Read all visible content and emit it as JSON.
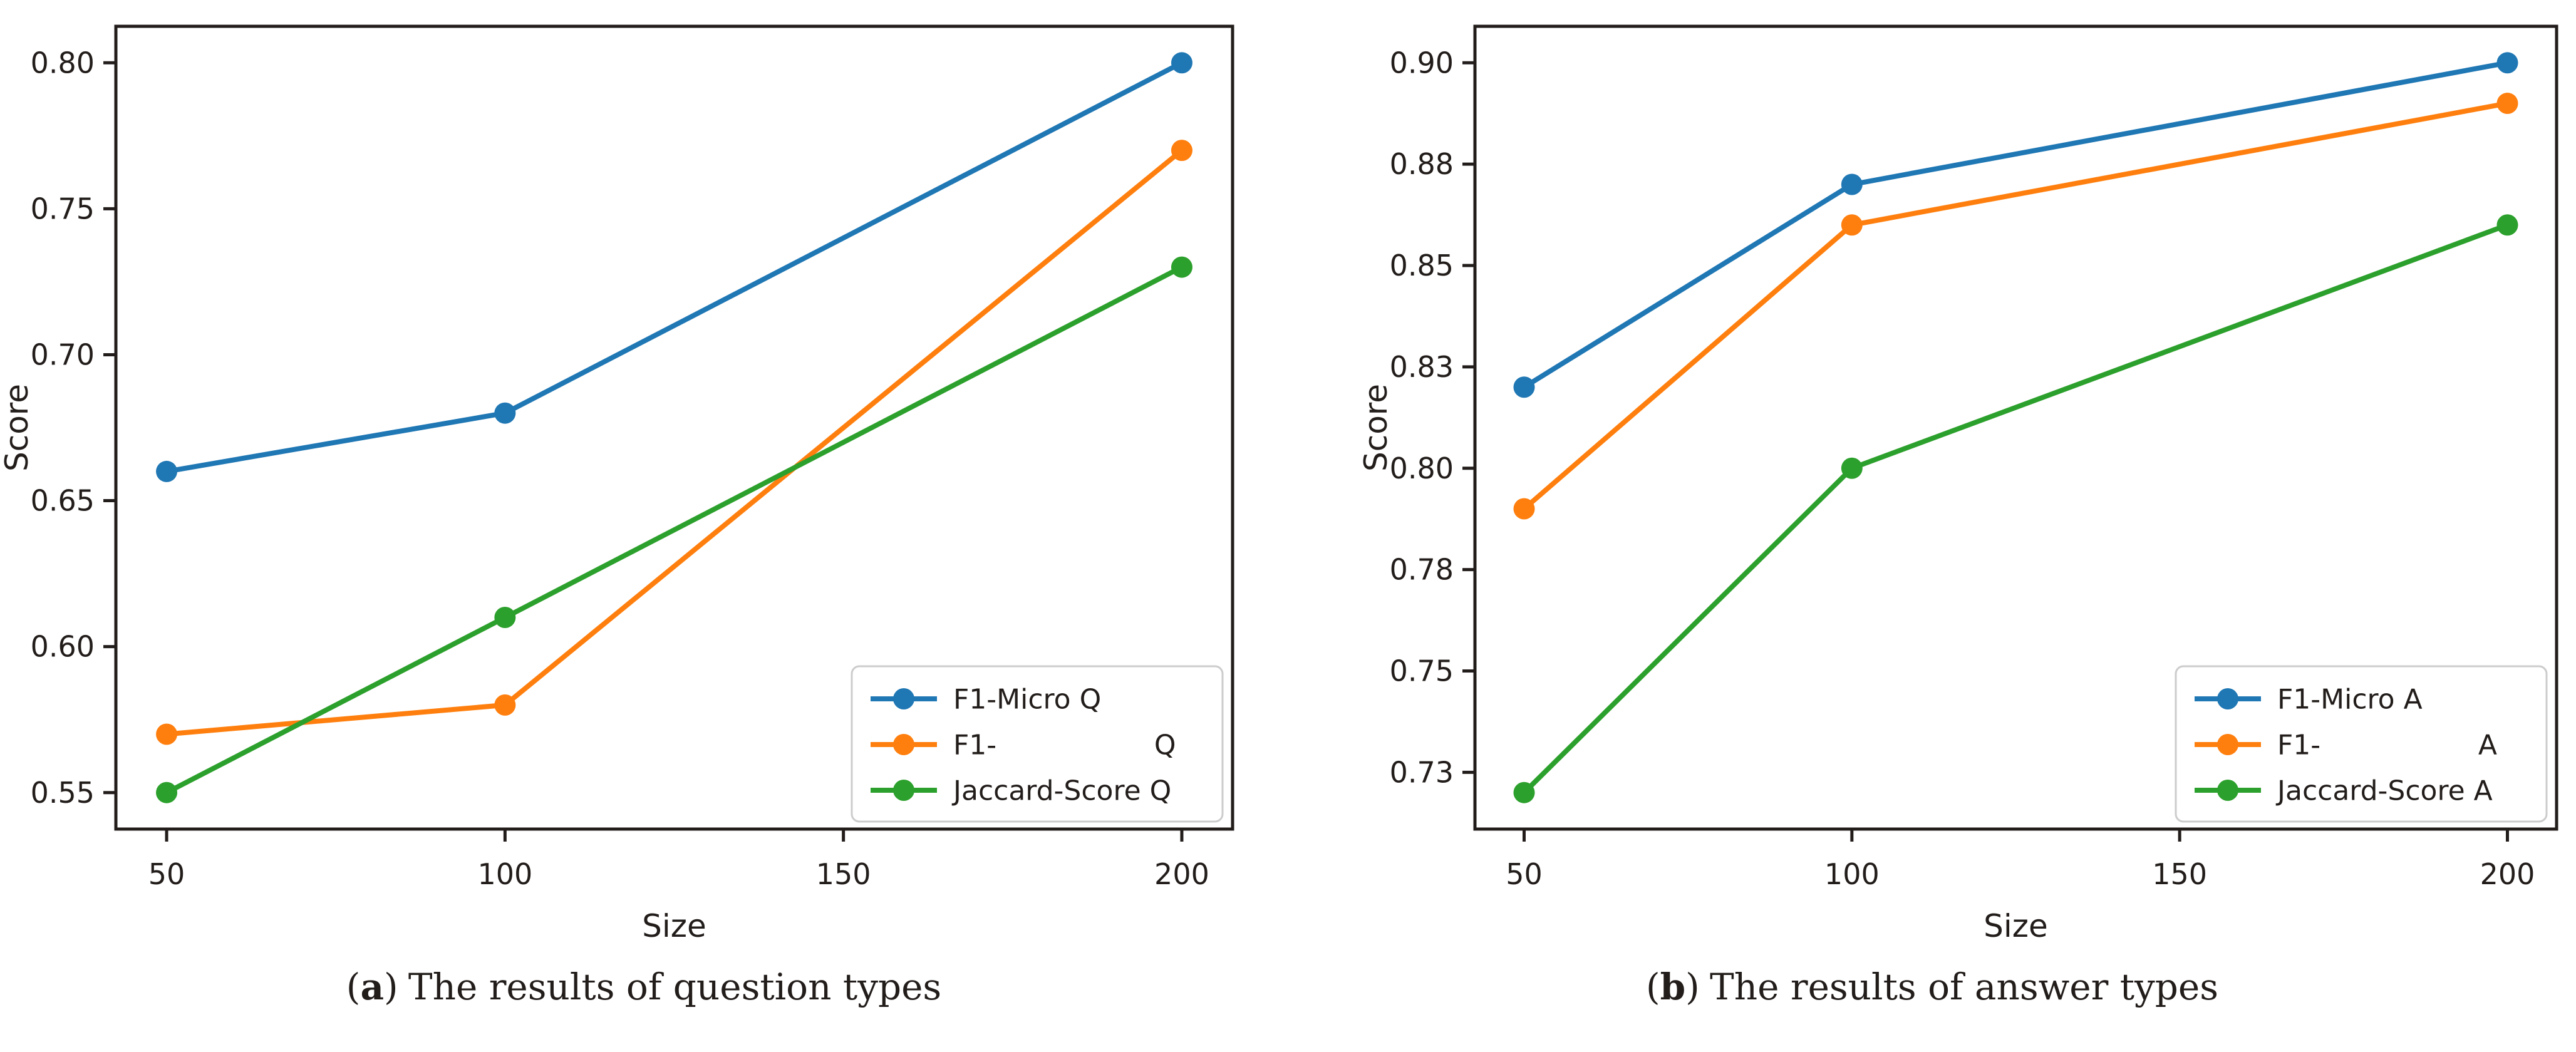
{
  "page": {
    "background": "#ffffff",
    "text_color": "#221d1b",
    "axis_color": "#221d1b",
    "legend_border_color": "#cccccc"
  },
  "captions": [
    {
      "open": "(",
      "letter": "a",
      "close": ")",
      "text": "The results of question types"
    },
    {
      "open": "(",
      "letter": "b",
      "close": ")",
      "text": "The results of answer types"
    }
  ],
  "chart_data": [
    {
      "id": "a",
      "type": "line",
      "title": "",
      "xlabel": "Size",
      "ylabel": "Score",
      "x": [
        50,
        100,
        200
      ],
      "xticks": [
        50,
        100,
        150,
        200
      ],
      "xtick_labels": [
        "50",
        "100",
        "150",
        "200"
      ],
      "ytick_values": [
        0.55,
        0.6,
        0.65,
        0.7,
        0.75,
        0.8
      ],
      "ytick_labels": [
        "0.55",
        "0.60",
        "0.65",
        "0.70",
        "0.75",
        "0.80"
      ],
      "xlim": [
        42.5,
        207.5
      ],
      "ylim": [
        0.5375,
        0.8125
      ],
      "grid": false,
      "legend_position": "lower right",
      "series": [
        {
          "name": "F1-Micro Q",
          "values": [
            0.66,
            0.68,
            0.8
          ],
          "color": "#1f77b4"
        },
        {
          "name": "F1-                  Q",
          "values": [
            0.57,
            0.58,
            0.77
          ],
          "color": "#ff7f0e"
        },
        {
          "name": "Jaccard-Score Q",
          "values": [
            0.55,
            0.61,
            0.73
          ],
          "color": "#2ca02c"
        }
      ]
    },
    {
      "id": "b",
      "type": "line",
      "title": "",
      "xlabel": "Size",
      "ylabel": "Score",
      "x": [
        50,
        100,
        200
      ],
      "xticks": [
        50,
        100,
        150,
        200
      ],
      "xtick_labels": [
        "50",
        "100",
        "150",
        "200"
      ],
      "ytick_values": [
        0.725,
        0.75,
        0.775,
        0.8,
        0.825,
        0.85,
        0.875,
        0.9
      ],
      "ytick_labels": [
        "0.73",
        "0.75",
        "0.78",
        "0.80",
        "0.83",
        "0.85",
        "0.88",
        "0.90"
      ],
      "xlim": [
        42.5,
        207.5
      ],
      "ylim": [
        0.711,
        0.909
      ],
      "grid": false,
      "legend_position": "lower right",
      "series": [
        {
          "name": "F1-Micro A",
          "values": [
            0.82,
            0.87,
            0.9
          ],
          "color": "#1f77b4"
        },
        {
          "name": "F1-                  A",
          "values": [
            0.79,
            0.86,
            0.89
          ],
          "color": "#ff7f0e"
        },
        {
          "name": "Jaccard-Score A",
          "values": [
            0.72,
            0.8,
            0.86
          ],
          "color": "#2ca02c"
        }
      ]
    }
  ]
}
